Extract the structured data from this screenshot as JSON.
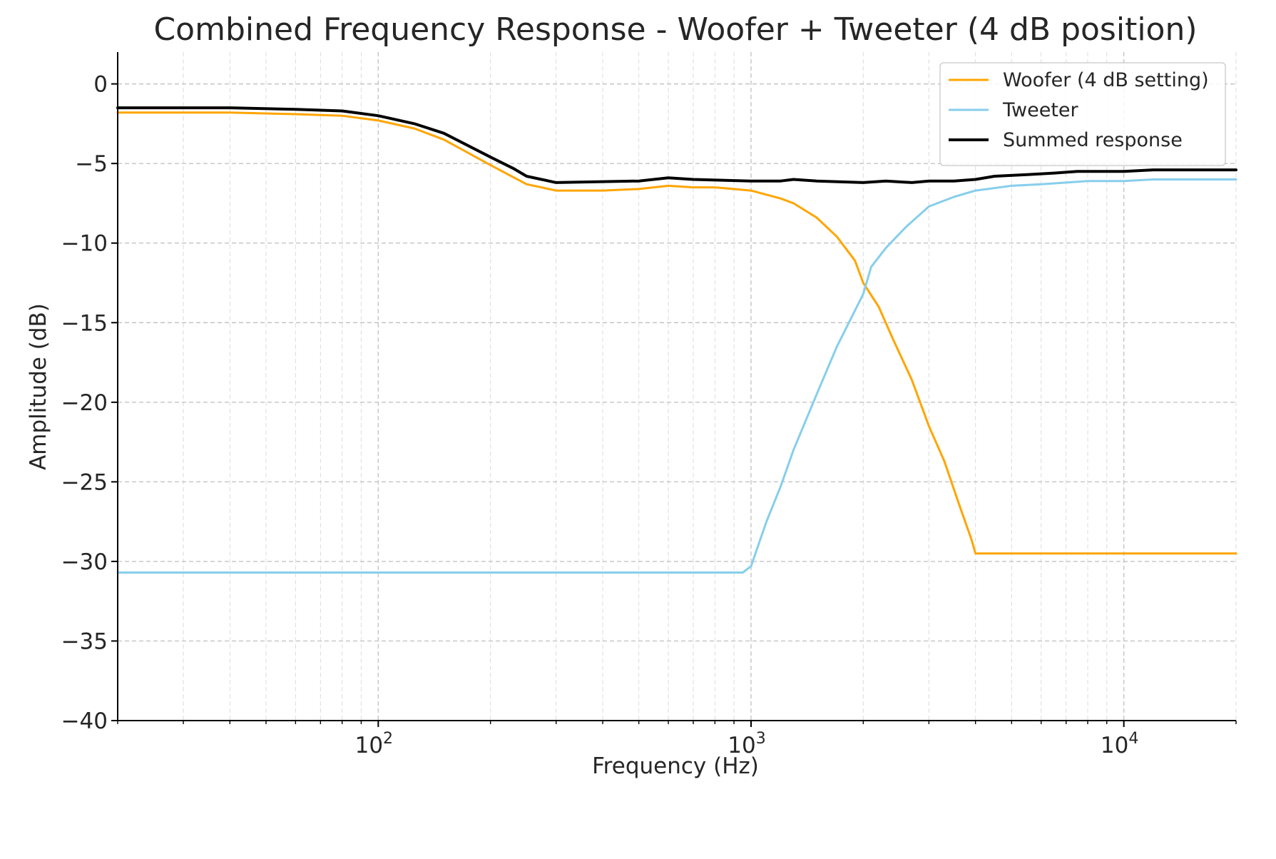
{
  "chart_data": {
    "type": "line",
    "title": "Combined Frequency Response - Woofer + Tweeter (4 dB position)",
    "xlabel": "Frequency (Hz)",
    "ylabel": "Amplitude (dB)",
    "xscale": "log",
    "xlim": [
      20,
      20000
    ],
    "ylim": [
      -40,
      2
    ],
    "x_ticks": [
      {
        "value": 100,
        "base": "10",
        "exp": "2"
      },
      {
        "value": 1000,
        "base": "10",
        "exp": "3"
      },
      {
        "value": 10000,
        "base": "10",
        "exp": "4"
      }
    ],
    "y_ticks": [
      {
        "value": 0,
        "label": "0"
      },
      {
        "value": -5,
        "label": "−5"
      },
      {
        "value": -10,
        "label": "−10"
      },
      {
        "value": -15,
        "label": "−15"
      },
      {
        "value": -20,
        "label": "−20"
      },
      {
        "value": -25,
        "label": "−25"
      },
      {
        "value": -30,
        "label": "−30"
      },
      {
        "value": -35,
        "label": "−35"
      },
      {
        "value": -40,
        "label": "−40"
      }
    ],
    "grid": true,
    "legend_position": "top-right",
    "series": [
      {
        "name": "Woofer (4 dB setting)",
        "color": "#FFA500",
        "width": 3,
        "points": [
          [
            20,
            -1.8
          ],
          [
            40,
            -1.8
          ],
          [
            60,
            -1.9
          ],
          [
            80,
            -2.0
          ],
          [
            100,
            -2.3
          ],
          [
            125,
            -2.8
          ],
          [
            150,
            -3.5
          ],
          [
            200,
            -5.1
          ],
          [
            250,
            -6.3
          ],
          [
            300,
            -6.7
          ],
          [
            400,
            -6.7
          ],
          [
            500,
            -6.6
          ],
          [
            600,
            -6.4
          ],
          [
            700,
            -6.5
          ],
          [
            800,
            -6.5
          ],
          [
            1000,
            -6.7
          ],
          [
            1200,
            -7.2
          ],
          [
            1300,
            -7.5
          ],
          [
            1500,
            -8.4
          ],
          [
            1700,
            -9.6
          ],
          [
            1900,
            -11.1
          ],
          [
            2000,
            -12.5
          ],
          [
            2200,
            -14.0
          ],
          [
            2400,
            -16.0
          ],
          [
            2700,
            -18.6
          ],
          [
            3000,
            -21.5
          ],
          [
            3300,
            -23.7
          ],
          [
            3600,
            -26.3
          ],
          [
            3900,
            -28.6
          ],
          [
            4000,
            -29.5
          ],
          [
            6000,
            -29.5
          ],
          [
            10000,
            -29.5
          ],
          [
            20000,
            -29.5
          ]
        ]
      },
      {
        "name": "Tweeter",
        "color": "#87CEEB",
        "width": 3,
        "points": [
          [
            20,
            -30.7
          ],
          [
            500,
            -30.7
          ],
          [
            950,
            -30.7
          ],
          [
            1000,
            -30.3
          ],
          [
            1100,
            -27.5
          ],
          [
            1200,
            -25.3
          ],
          [
            1300,
            -23.0
          ],
          [
            1500,
            -19.5
          ],
          [
            1700,
            -16.5
          ],
          [
            2000,
            -13.2
          ],
          [
            2100,
            -11.5
          ],
          [
            2300,
            -10.3
          ],
          [
            2600,
            -9.0
          ],
          [
            3000,
            -7.7
          ],
          [
            3500,
            -7.1
          ],
          [
            4000,
            -6.7
          ],
          [
            5000,
            -6.4
          ],
          [
            6000,
            -6.3
          ],
          [
            7000,
            -6.2
          ],
          [
            8000,
            -6.1
          ],
          [
            10000,
            -6.1
          ],
          [
            12000,
            -6.0
          ],
          [
            20000,
            -6.0
          ]
        ]
      },
      {
        "name": "Summed response",
        "color": "#000000",
        "width": 4,
        "points": [
          [
            20,
            -1.5
          ],
          [
            40,
            -1.5
          ],
          [
            60,
            -1.6
          ],
          [
            80,
            -1.7
          ],
          [
            100,
            -2.0
          ],
          [
            125,
            -2.5
          ],
          [
            150,
            -3.1
          ],
          [
            200,
            -4.6
          ],
          [
            230,
            -5.3
          ],
          [
            250,
            -5.8
          ],
          [
            300,
            -6.2
          ],
          [
            500,
            -6.1
          ],
          [
            600,
            -5.9
          ],
          [
            700,
            -6.0
          ],
          [
            1000,
            -6.1
          ],
          [
            1200,
            -6.1
          ],
          [
            1300,
            -6.0
          ],
          [
            1500,
            -6.1
          ],
          [
            2000,
            -6.2
          ],
          [
            2300,
            -6.1
          ],
          [
            2700,
            -6.2
          ],
          [
            3000,
            -6.1
          ],
          [
            3500,
            -6.1
          ],
          [
            4000,
            -6.0
          ],
          [
            4500,
            -5.8
          ],
          [
            5500,
            -5.7
          ],
          [
            6500,
            -5.6
          ],
          [
            7500,
            -5.5
          ],
          [
            10000,
            -5.5
          ],
          [
            12000,
            -5.4
          ],
          [
            20000,
            -5.4
          ]
        ]
      }
    ]
  }
}
